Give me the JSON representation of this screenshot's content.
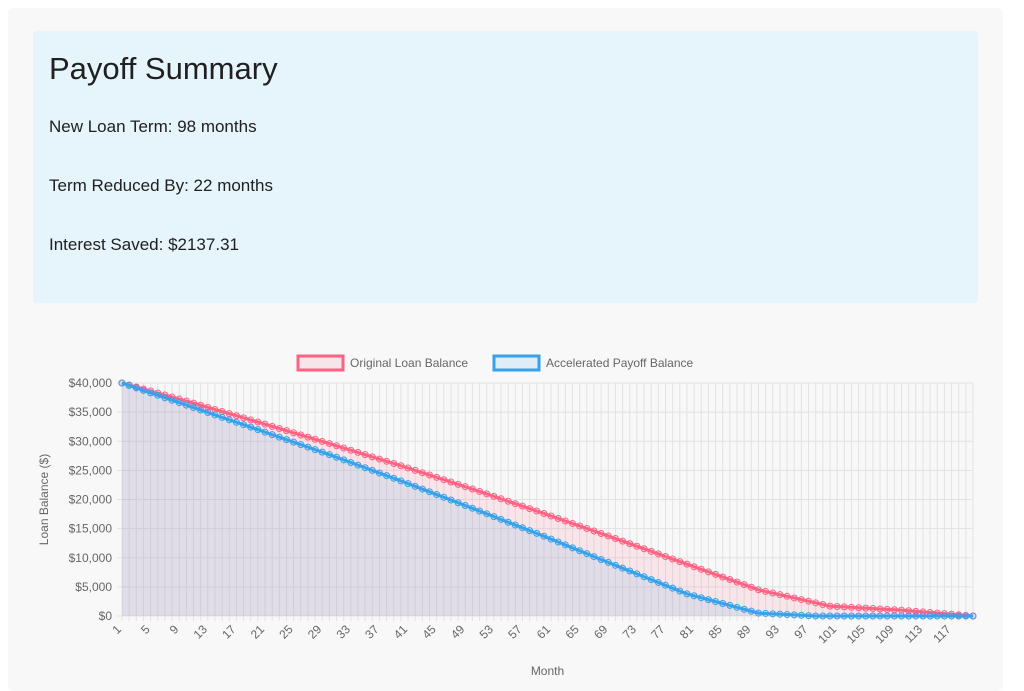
{
  "summary": {
    "title": "Payoff Summary",
    "new_loan_term": "New Loan Term: 98 months",
    "term_reduced_by": "Term Reduced By: 22 months",
    "interest_saved": "Interest Saved: $2137.31"
  },
  "colors": {
    "original": "#ff6384",
    "original_fill": "rgba(255,99,132,0.12)",
    "accelerated": "#36a2eb",
    "accelerated_fill": "rgba(54,162,235,0.12)",
    "grid": "#e2e2e2",
    "background": "#f8f8f8",
    "summary_background": "#e6f4fc"
  },
  "chart_data": {
    "type": "area",
    "xlabel": "Month",
    "ylabel": "Loan Balance ($)",
    "ylim": [
      0,
      40000
    ],
    "y_ticks": [
      "$0",
      "$5,000",
      "$10,000",
      "$15,000",
      "$20,000",
      "$25,000",
      "$30,000",
      "$35,000",
      "$40,000"
    ],
    "y_tick_values": [
      0,
      5000,
      10000,
      15000,
      20000,
      25000,
      30000,
      35000,
      40000
    ],
    "x_months": 120,
    "x_tick_labels": [
      "1",
      "5",
      "9",
      "13",
      "17",
      "21",
      "25",
      "29",
      "33",
      "37",
      "41",
      "45",
      "49",
      "53",
      "57",
      "61",
      "65",
      "69",
      "73",
      "77",
      "81",
      "85",
      "89",
      "93",
      "97",
      "101",
      "105",
      "109",
      "113",
      "117"
    ],
    "legend_position": "top",
    "grid": true,
    "series": [
      {
        "name": "Original Loan Balance",
        "points_by_month": [
          [
            1,
            40000
          ],
          [
            10,
            36900
          ],
          [
            20,
            33300
          ],
          [
            30,
            29600
          ],
          [
            40,
            25800
          ],
          [
            50,
            21800
          ],
          [
            60,
            17600
          ],
          [
            70,
            13300
          ],
          [
            80,
            8900
          ],
          [
            90,
            4500
          ],
          [
            100,
            1700
          ],
          [
            110,
            1000
          ],
          [
            120,
            0
          ]
        ]
      },
      {
        "name": "Accelerated Payoff Balance",
        "points_by_month": [
          [
            1,
            40000
          ],
          [
            10,
            36200
          ],
          [
            20,
            32000
          ],
          [
            30,
            27700
          ],
          [
            40,
            23200
          ],
          [
            50,
            18500
          ],
          [
            60,
            13700
          ],
          [
            70,
            8700
          ],
          [
            80,
            3800
          ],
          [
            90,
            500
          ],
          [
            98,
            0
          ],
          [
            120,
            0
          ]
        ]
      }
    ]
  }
}
